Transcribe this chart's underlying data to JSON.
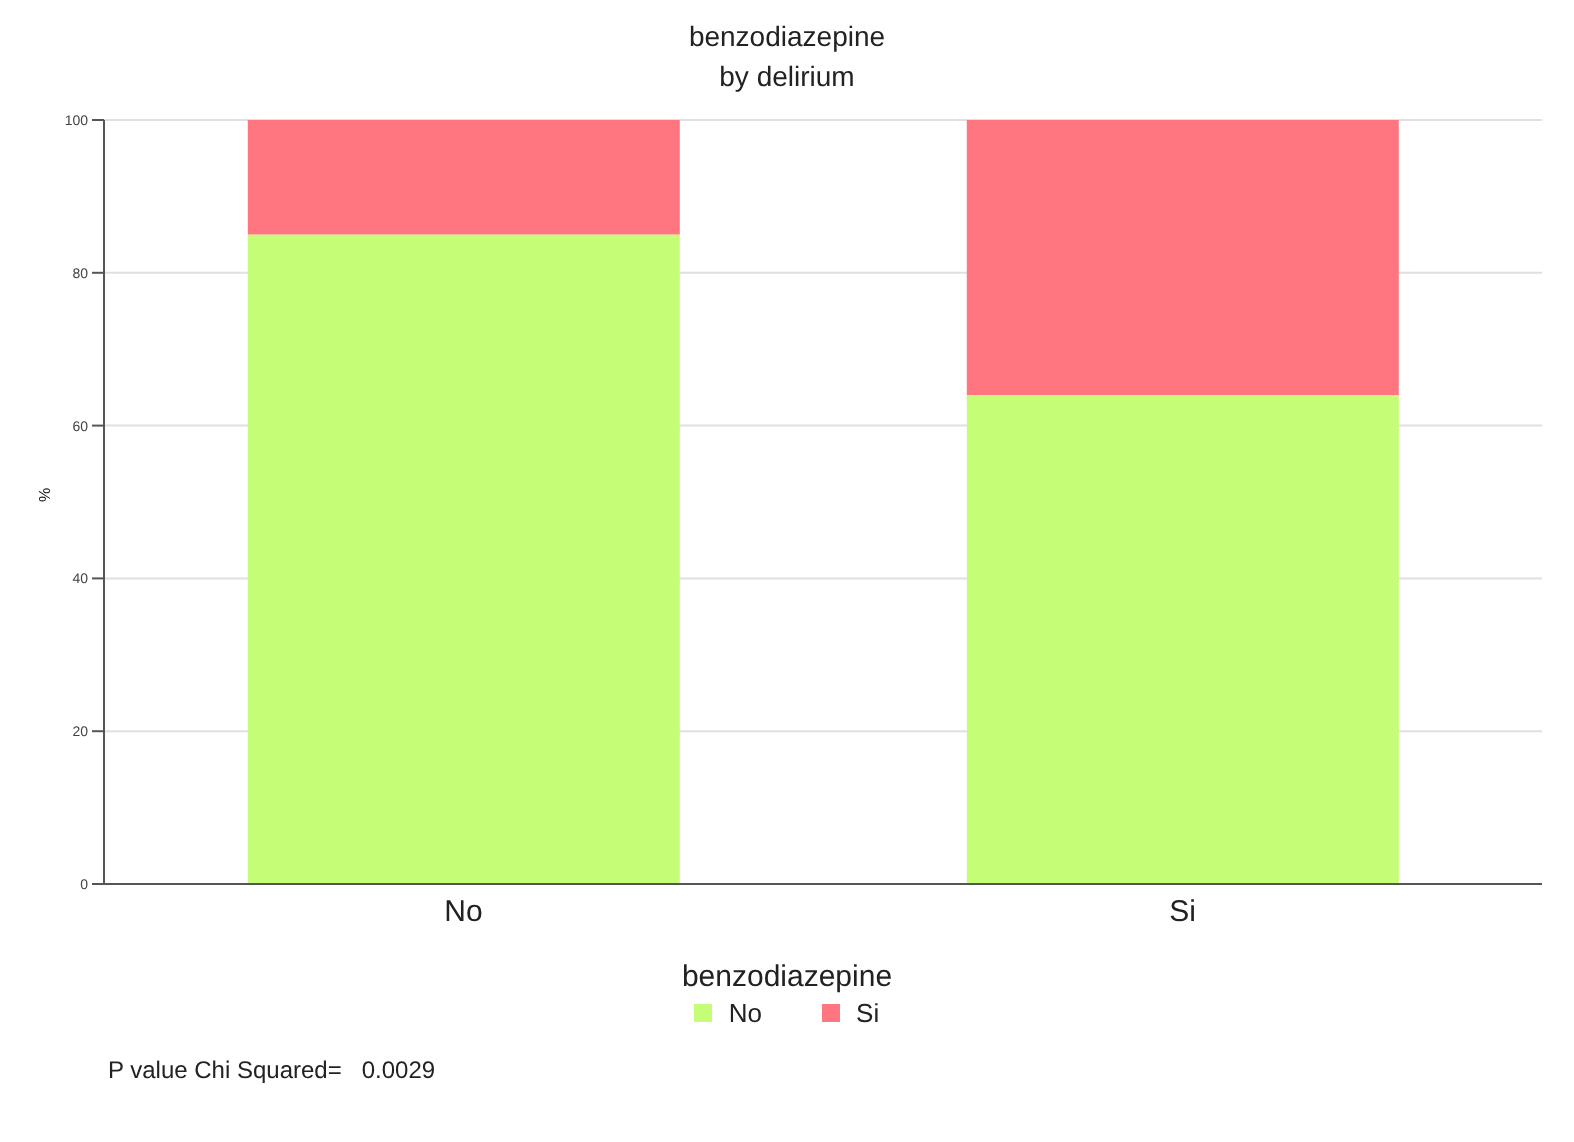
{
  "chart_data": {
    "type": "bar",
    "title": "benzodiazepine",
    "subtitle": "by delirium",
    "ylabel": "%",
    "legend_title": "benzodiazepine",
    "categories": [
      "No",
      "Si"
    ],
    "stacked": true,
    "series": [
      {
        "name": "No",
        "color": "#c6fd76",
        "values": [
          85,
          64
        ]
      },
      {
        "name": "Si",
        "color": "#ff7580",
        "values": [
          15,
          36
        ]
      }
    ],
    "ylim": [
      0,
      100
    ],
    "yticks": [
      0,
      20,
      40,
      60,
      80,
      100
    ],
    "grid": "y",
    "legend": "bottom",
    "annotations": [
      "P value Chi Squared=   0.0029"
    ]
  }
}
